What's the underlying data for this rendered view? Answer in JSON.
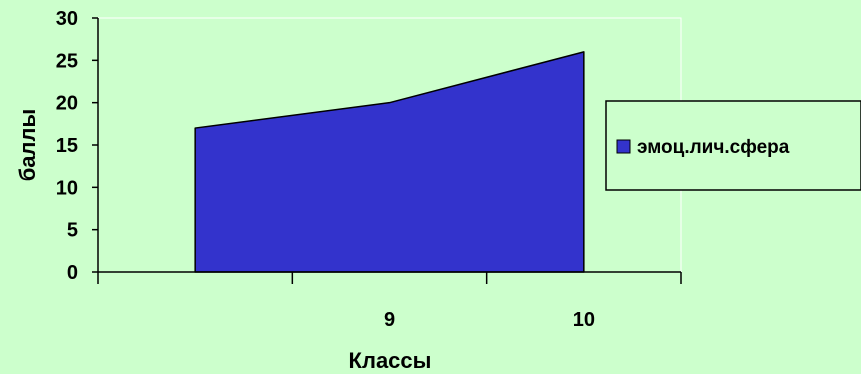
{
  "chart_data": {
    "type": "area",
    "x": [
      "8",
      "9",
      "10"
    ],
    "x_tick_labels": [
      "",
      "9",
      "10"
    ],
    "series": [
      {
        "name": "эмоц.лич.сфера",
        "values": [
          17,
          20,
          26
        ],
        "color": "#3333cc"
      }
    ],
    "ylim": [
      0,
      30
    ],
    "yticks": [
      0,
      5,
      10,
      15,
      20,
      25,
      30
    ],
    "xlabel": "Классы",
    "ylabel": "баллы",
    "title": "",
    "grid": false,
    "legend": "right"
  },
  "colors": {
    "background": "#ccffcc",
    "plot_border": "#ffffff",
    "legend_bg": "#ccffcc"
  }
}
